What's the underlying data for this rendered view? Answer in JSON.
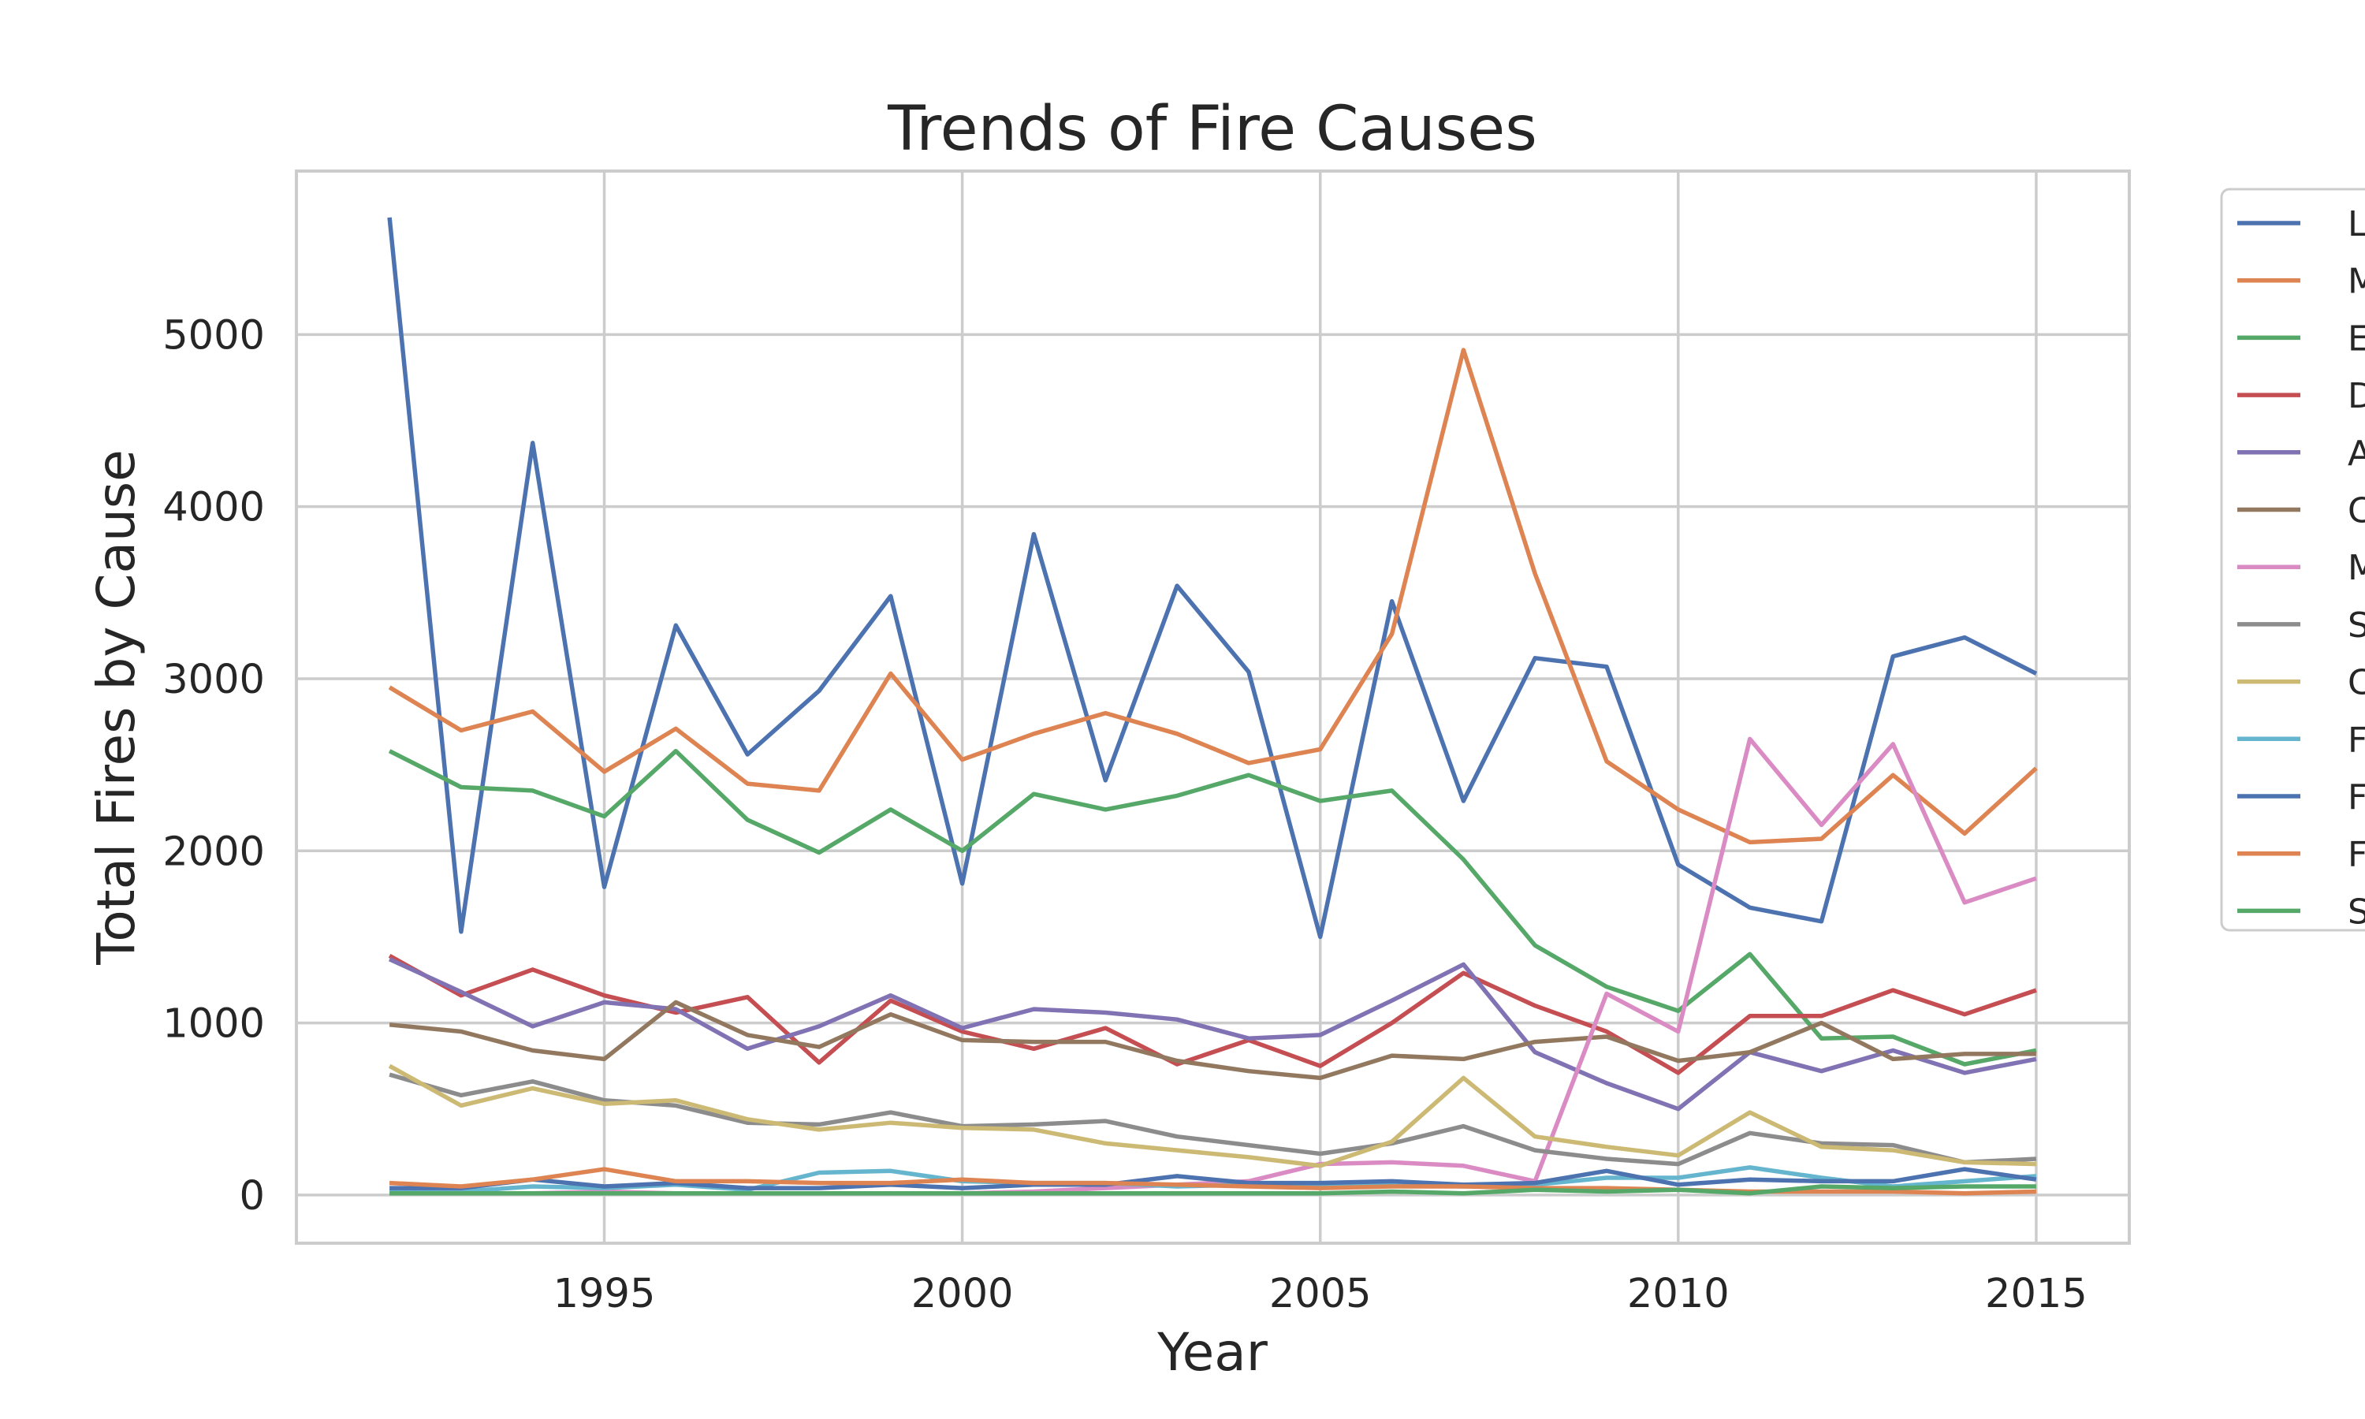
{
  "chart_data": {
    "type": "line",
    "title": "Trends of Fire Causes",
    "xlabel": "Year",
    "ylabel": "Total Fires by Cause",
    "xlim": [
      1990.7,
      2016.3
    ],
    "ylim": [
      -280,
      5950
    ],
    "xticks": [
      1995,
      2000,
      2005,
      2010,
      2015
    ],
    "yticks": [
      0,
      1000,
      2000,
      3000,
      4000,
      5000
    ],
    "grid": true,
    "legend_position": "outside-right",
    "x": [
      1992,
      1993,
      1994,
      1995,
      1996,
      1997,
      1998,
      1999,
      2000,
      2001,
      2002,
      2003,
      2004,
      2005,
      2006,
      2007,
      2008,
      2009,
      2010,
      2011,
      2012,
      2013,
      2014,
      2015
    ],
    "series": [
      {
        "name": "L",
        "color": "#4c72b0",
        "values": [
          5680,
          1530,
          4370,
          1790,
          3310,
          2560,
          2930,
          3480,
          1810,
          3840,
          2410,
          3540,
          3040,
          1500,
          3450,
          2290,
          3120,
          3070,
          1920,
          1670,
          1590,
          3130,
          3240,
          3030
        ]
      },
      {
        "name": "M",
        "color": "#dd8452",
        "values": [
          2950,
          2700,
          2810,
          2460,
          2710,
          2390,
          2350,
          3030,
          2530,
          2680,
          2800,
          2680,
          2510,
          2590,
          3260,
          4910,
          3610,
          2520,
          2240,
          2050,
          2070,
          2440,
          2100,
          2480
        ]
      },
      {
        "name": "E",
        "color": "#55a868",
        "values": [
          2580,
          2370,
          2350,
          2200,
          2580,
          2180,
          1990,
          2240,
          2000,
          2330,
          2240,
          2320,
          2440,
          2290,
          2350,
          1950,
          1450,
          1210,
          1070,
          1400,
          910,
          920,
          760,
          840
        ]
      },
      {
        "name": "D",
        "color": "#c44e52",
        "values": [
          1390,
          1160,
          1310,
          1160,
          1060,
          1150,
          770,
          1130,
          950,
          850,
          970,
          760,
          900,
          750,
          1000,
          1290,
          1100,
          950,
          710,
          1040,
          1040,
          1190,
          1050,
          1190
        ]
      },
      {
        "name": "A",
        "color": "#8172b3",
        "values": [
          1370,
          1180,
          980,
          1120,
          1080,
          850,
          980,
          1160,
          970,
          1080,
          1060,
          1020,
          910,
          930,
          1130,
          1340,
          830,
          650,
          500,
          830,
          720,
          840,
          710,
          790
        ]
      },
      {
        "name": "C",
        "color": "#937860",
        "values": [
          990,
          950,
          840,
          790,
          1120,
          930,
          860,
          1050,
          900,
          890,
          890,
          780,
          720,
          680,
          810,
          790,
          890,
          920,
          780,
          830,
          1000,
          790,
          820,
          820
        ]
      },
      {
        "name": "M",
        "color": "#da8bc3",
        "values": [
          10,
          10,
          10,
          20,
          10,
          10,
          10,
          10,
          10,
          20,
          40,
          60,
          80,
          180,
          190,
          170,
          80,
          1170,
          950,
          2650,
          2150,
          2620,
          1700,
          1840
        ]
      },
      {
        "name": "S",
        "color": "#8c8c8c",
        "values": [
          700,
          580,
          660,
          550,
          520,
          420,
          410,
          480,
          400,
          410,
          430,
          340,
          290,
          240,
          300,
          400,
          260,
          210,
          180,
          360,
          300,
          290,
          190,
          210
        ]
      },
      {
        "name": "C",
        "color": "#ccb974",
        "values": [
          750,
          520,
          620,
          530,
          550,
          440,
          380,
          420,
          390,
          380,
          300,
          260,
          220,
          170,
          310,
          680,
          340,
          280,
          230,
          480,
          280,
          260,
          190,
          180
        ]
      },
      {
        "name": "F",
        "color": "#64b5cd",
        "values": [
          20,
          20,
          50,
          40,
          60,
          30,
          130,
          140,
          80,
          70,
          70,
          50,
          60,
          60,
          60,
          50,
          60,
          100,
          100,
          160,
          100,
          50,
          80,
          110
        ]
      },
      {
        "name": "F",
        "color": "#4c72b0",
        "values": [
          40,
          40,
          90,
          50,
          70,
          40,
          40,
          60,
          40,
          60,
          60,
          110,
          70,
          70,
          80,
          60,
          70,
          140,
          60,
          90,
          80,
          80,
          150,
          90
        ]
      },
      {
        "name": "F",
        "color": "#dd8452",
        "values": [
          70,
          50,
          90,
          150,
          80,
          80,
          70,
          70,
          90,
          70,
          70,
          60,
          50,
          40,
          50,
          50,
          40,
          40,
          30,
          20,
          20,
          20,
          10,
          20
        ]
      },
      {
        "name": "S",
        "color": "#55a868",
        "values": [
          10,
          10,
          10,
          10,
          10,
          10,
          10,
          10,
          10,
          10,
          10,
          10,
          10,
          10,
          20,
          10,
          30,
          20,
          30,
          10,
          50,
          40,
          50,
          50
        ]
      }
    ]
  }
}
